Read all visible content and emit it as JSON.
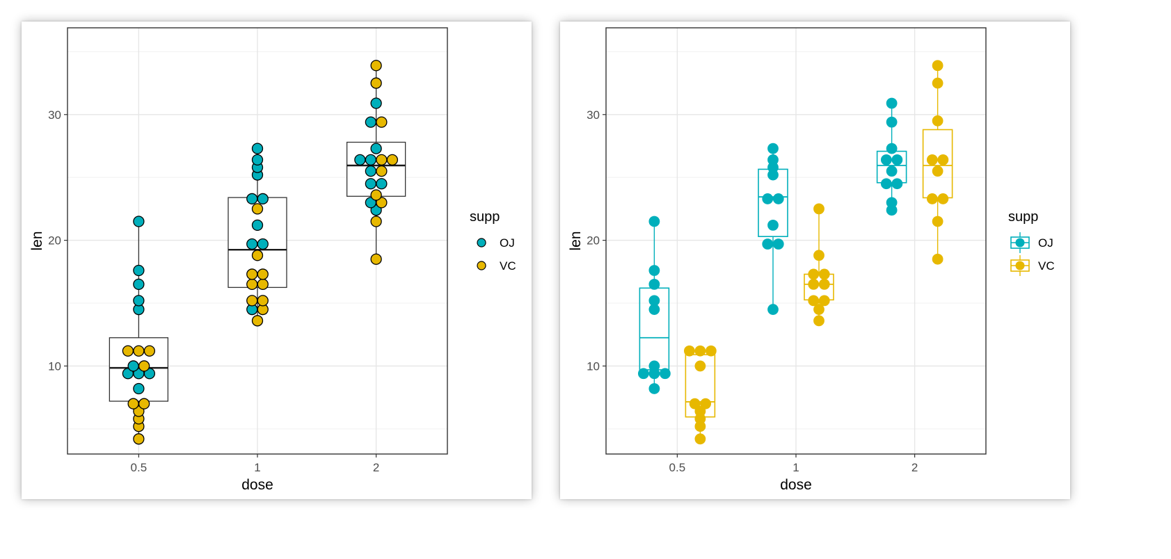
{
  "colors": {
    "OJ": "#00AFBB",
    "VC": "#E7B800"
  },
  "chart_data": [
    {
      "type": "dotplot+boxplot",
      "variant": "combined",
      "xlabel": "dose",
      "ylabel": "len",
      "categories": [
        "0.5",
        "1",
        "2"
      ],
      "ylim": [
        3.0,
        36.9
      ],
      "yticks": [
        10,
        20,
        30
      ],
      "grid": true,
      "legend": {
        "title": "supp",
        "position": "right",
        "entries": [
          "OJ",
          "VC"
        ]
      },
      "boxes": [
        {
          "dose": "0.5",
          "q1": 7.2,
          "median": 9.85,
          "q3": 12.25,
          "min": 4.2,
          "max": 21.5
        },
        {
          "dose": "1",
          "q1": 16.25,
          "median": 19.25,
          "q3": 23.4,
          "min": 13.6,
          "max": 27.3
        },
        {
          "dose": "2",
          "q1": 23.5,
          "median": 25.95,
          "q3": 27.8,
          "min": 18.5,
          "max": 33.9
        }
      ],
      "series": [
        {
          "name": "OJ",
          "values": {
            "0.5": [
              15.2,
              21.5,
              17.6,
              9.7,
              14.5,
              10.0,
              8.2,
              9.4,
              16.5,
              9.7
            ],
            "1": [
              19.7,
              23.3,
              23.6,
              26.4,
              20.0,
              25.2,
              25.8,
              21.2,
              14.5,
              27.3
            ],
            "2": [
              25.5,
              26.4,
              22.4,
              24.5,
              24.8,
              30.9,
              26.4,
              27.3,
              29.4,
              23.0
            ]
          }
        },
        {
          "name": "VC",
          "values": {
            "0.5": [
              4.2,
              11.5,
              7.3,
              5.8,
              6.4,
              10.0,
              11.2,
              11.2,
              5.2,
              7.0
            ],
            "1": [
              16.5,
              16.5,
              15.2,
              17.3,
              22.5,
              17.3,
              13.6,
              14.5,
              18.8,
              15.5
            ],
            "2": [
              23.6,
              18.5,
              33.9,
              25.5,
              26.4,
              32.5,
              26.7,
              21.5,
              23.3,
              29.5
            ]
          }
        }
      ]
    },
    {
      "type": "dotplot+boxplot",
      "variant": "dodged",
      "xlabel": "dose",
      "ylabel": "len",
      "categories": [
        "0.5",
        "1",
        "2"
      ],
      "ylim": [
        3.0,
        36.9
      ],
      "yticks": [
        10,
        20,
        30
      ],
      "grid": true,
      "legend": {
        "title": "supp",
        "position": "right",
        "entries": [
          "OJ",
          "VC"
        ]
      },
      "boxes": [
        {
          "dose": "0.5",
          "supp": "OJ",
          "q1": 9.7,
          "median": 12.25,
          "q3": 16.2,
          "min": 8.2,
          "max": 21.5
        },
        {
          "dose": "0.5",
          "supp": "VC",
          "q1": 5.95,
          "median": 7.15,
          "q3": 10.9,
          "min": 4.2,
          "max": 11.5
        },
        {
          "dose": "1",
          "supp": "OJ",
          "q1": 20.3,
          "median": 23.45,
          "q3": 25.65,
          "min": 14.5,
          "max": 27.3
        },
        {
          "dose": "1",
          "supp": "VC",
          "q1": 15.26,
          "median": 16.5,
          "q3": 17.3,
          "min": 13.6,
          "max": 22.5
        },
        {
          "dose": "2",
          "supp": "OJ",
          "q1": 24.58,
          "median": 25.95,
          "q3": 27.08,
          "min": 22.4,
          "max": 30.9
        },
        {
          "dose": "2",
          "supp": "VC",
          "q1": 23.38,
          "median": 25.95,
          "q3": 28.8,
          "min": 18.5,
          "max": 33.9
        }
      ],
      "series": [
        {
          "name": "OJ",
          "values": {
            "0.5": [
              15.2,
              21.5,
              17.6,
              9.7,
              14.5,
              10.0,
              8.2,
              9.4,
              16.5,
              9.7
            ],
            "1": [
              19.7,
              23.3,
              23.6,
              26.4,
              20.0,
              25.2,
              25.8,
              21.2,
              14.5,
              27.3
            ],
            "2": [
              25.5,
              26.4,
              22.4,
              24.5,
              24.8,
              30.9,
              26.4,
              27.3,
              29.4,
              23.0
            ]
          }
        },
        {
          "name": "VC",
          "values": {
            "0.5": [
              4.2,
              11.5,
              7.3,
              5.8,
              6.4,
              10.0,
              11.2,
              11.2,
              5.2,
              7.0
            ],
            "1": [
              16.5,
              16.5,
              15.2,
              17.3,
              22.5,
              17.3,
              13.6,
              14.5,
              18.8,
              15.5
            ],
            "2": [
              23.6,
              18.5,
              33.9,
              25.5,
              26.4,
              32.5,
              26.7,
              21.5,
              23.3,
              29.5
            ]
          }
        }
      ]
    }
  ]
}
